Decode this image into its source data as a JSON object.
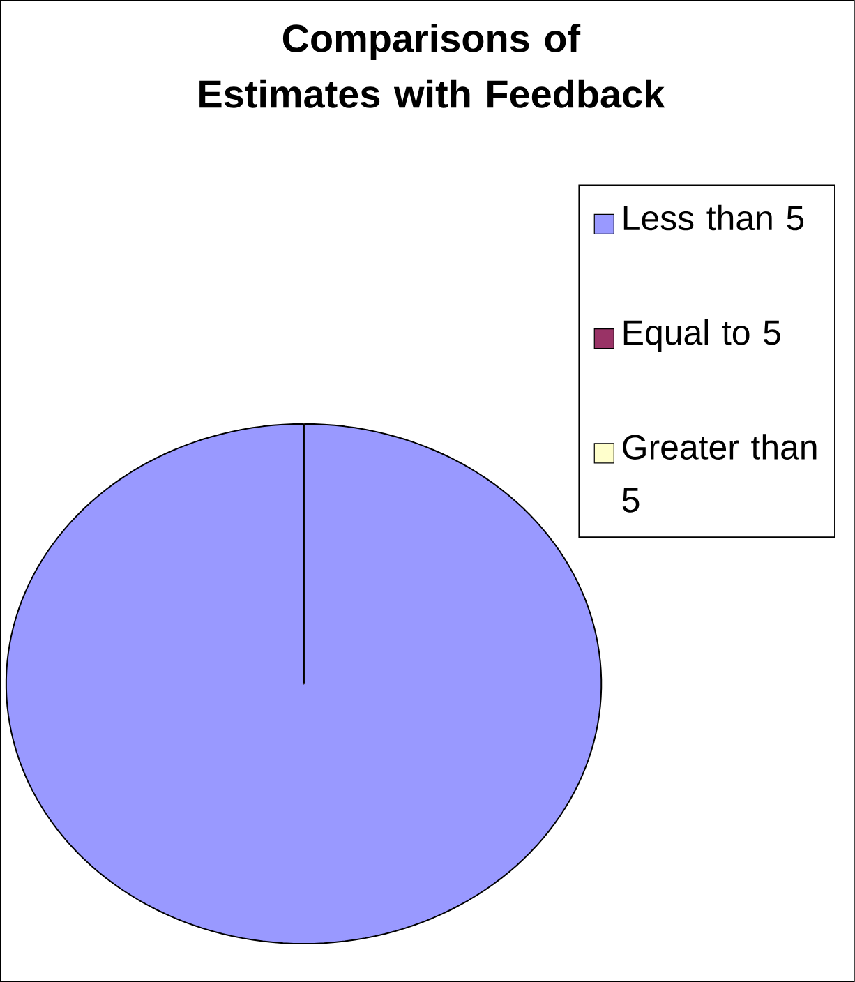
{
  "chart_data": {
    "type": "pie",
    "title": "Comparisons of Estimates with Feedback",
    "categories": [
      "Less than 5",
      "Equal to 5",
      "Greater than 5"
    ],
    "values": [
      100,
      0,
      0
    ],
    "colors": [
      "#9999ff",
      "#993366",
      "#ffffcc"
    ],
    "legend": "right"
  }
}
